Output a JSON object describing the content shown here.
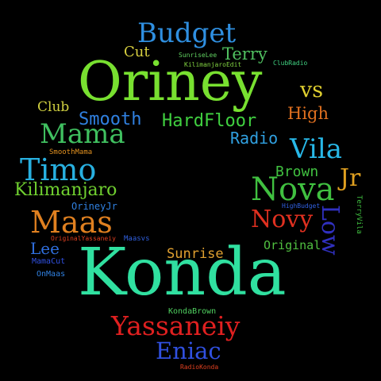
{
  "cloud": {
    "background": "#000000",
    "words": [
      {
        "text": "Budget",
        "color": "#2f8fe0"
      },
      {
        "text": "Cut",
        "color": "#d8d040"
      },
      {
        "text": "SunriseLee",
        "color": "#60d060"
      },
      {
        "text": "Terry",
        "color": "#50c060"
      },
      {
        "text": "KilimanjaroEdit",
        "color": "#80d040"
      },
      {
        "text": "ClubRadio",
        "color": "#40d080"
      },
      {
        "text": "Oriney",
        "color": "#78e030"
      },
      {
        "text": "vs",
        "color": "#e0d030"
      },
      {
        "text": "Club",
        "color": "#d0d040"
      },
      {
        "text": "High",
        "color": "#e07020"
      },
      {
        "text": "Smooth",
        "color": "#3080e0"
      },
      {
        "text": "HardFloor",
        "color": "#40d040"
      },
      {
        "text": "Mama",
        "color": "#40c060"
      },
      {
        "text": "Radio",
        "color": "#30a0e0"
      },
      {
        "text": "SmoothMama",
        "color": "#e09020"
      },
      {
        "text": "Vila",
        "color": "#28b8e8"
      },
      {
        "text": "Timo",
        "color": "#28b0e0"
      },
      {
        "text": "Brown",
        "color": "#40c040"
      },
      {
        "text": "Jr",
        "color": "#e0a020"
      },
      {
        "text": "Kilimanjaro",
        "color": "#70d030"
      },
      {
        "text": "Nova",
        "color": "#40c040"
      },
      {
        "text": "HighBudget",
        "color": "#3060e0"
      },
      {
        "text": "TerryVila",
        "color": "#40c040"
      },
      {
        "text": "OrineyJr",
        "color": "#3080e0"
      },
      {
        "text": "Maas",
        "color": "#e08020"
      },
      {
        "text": "Novy",
        "color": "#e03020"
      },
      {
        "text": "Low",
        "color": "#3030c0"
      },
      {
        "text": "OriginalYassaneiy",
        "color": "#e04020"
      },
      {
        "text": "Maasvs",
        "color": "#3060e0"
      },
      {
        "text": "Original",
        "color": "#50c040"
      },
      {
        "text": "Lee",
        "color": "#3070e0"
      },
      {
        "text": "Sunrise",
        "color": "#e0a030"
      },
      {
        "text": "MamaCut",
        "color": "#3050e0"
      },
      {
        "text": "OnMaas",
        "color": "#3080e0"
      },
      {
        "text": "Konda",
        "color": "#30e0a0"
      },
      {
        "text": "KondaBrown",
        "color": "#50d060"
      },
      {
        "text": "Yassaneiy",
        "color": "#e02020"
      },
      {
        "text": "Eniac",
        "color": "#3050e0"
      },
      {
        "text": "RadioKonda",
        "color": "#e04020"
      }
    ]
  }
}
